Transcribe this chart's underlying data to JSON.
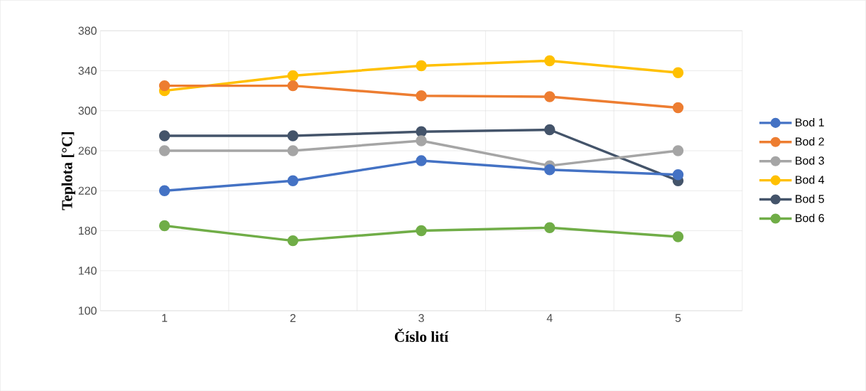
{
  "chart_data": {
    "type": "line",
    "xlabel": "Číslo lití",
    "ylabel": "Teplota [°C]",
    "categories": [
      "1",
      "2",
      "3",
      "4",
      "5"
    ],
    "ylim": [
      100,
      380
    ],
    "yticks": [
      100,
      140,
      180,
      220,
      260,
      300,
      340,
      380
    ],
    "grid": true,
    "legend": "right",
    "marker": "circle",
    "line_style": "solid",
    "series": [
      {
        "name": "Bod 1",
        "color": "#4472c4",
        "values": [
          220,
          230,
          250,
          241,
          236
        ]
      },
      {
        "name": "Bod 2",
        "color": "#ed7d31",
        "values": [
          325,
          325,
          315,
          314,
          303
        ]
      },
      {
        "name": "Bod 3",
        "color": "#a5a5a5",
        "values": [
          260,
          260,
          270,
          245,
          260
        ]
      },
      {
        "name": "Bod 4",
        "color": "#ffc000",
        "values": [
          320,
          335,
          345,
          350,
          338
        ]
      },
      {
        "name": "Bod 5",
        "color": "#44546a",
        "values": [
          275,
          275,
          279,
          281,
          230
        ]
      },
      {
        "name": "Bod 6",
        "color": "#70ad47",
        "values": [
          185,
          170,
          180,
          183,
          174
        ]
      }
    ]
  }
}
